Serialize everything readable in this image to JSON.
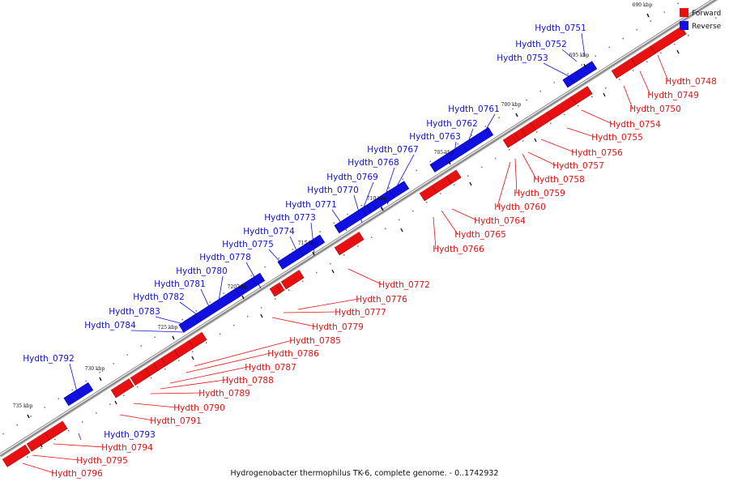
{
  "caption": "Hydrogenobacter thermophilus TK-6, complete genome. - 0..1742932",
  "legend": [
    {
      "label": "Forward",
      "color": "#e81010"
    },
    {
      "label": "Reverse",
      "color": "#1010e0"
    }
  ],
  "colors": {
    "forward": "#e81010",
    "reverse": "#1010e0",
    "axis": "#8c8c8c"
  },
  "kbp_ticks": [
    {
      "label": "690 kbp",
      "pos": 690
    },
    {
      "label": "695 kbp",
      "pos": 695
    },
    {
      "label": "700 kbp",
      "pos": 700
    },
    {
      "label": "705 kbp",
      "pos": 705
    },
    {
      "label": "710 kbp",
      "pos": 710
    },
    {
      "label": "715 kbp",
      "pos": 715
    },
    {
      "label": "720 kbp",
      "pos": 720
    },
    {
      "label": "725 kbp",
      "pos": 725
    },
    {
      "label": "730 kbp",
      "pos": 730
    },
    {
      "label": "735 kbp",
      "pos": 735
    }
  ],
  "reverse_genes": [
    "Hydth_0751",
    "Hydth_0752",
    "Hydth_0753",
    "Hydth_0761",
    "Hydth_0762",
    "Hydth_0763",
    "Hydth_0767",
    "Hydth_0768",
    "Hydth_0769",
    "Hydth_0770",
    "Hydth_0771",
    "Hydth_0773",
    "Hydth_0774",
    "Hydth_0775",
    "Hydth_0778",
    "Hydth_0780",
    "Hydth_0781",
    "Hydth_0782",
    "Hydth_0783",
    "Hydth_0784",
    "Hydth_0792",
    "Hydth_0793"
  ],
  "forward_genes": [
    "Hydth_0748",
    "Hydth_0749",
    "Hydth_0750",
    "Hydth_0754",
    "Hydth_0755",
    "Hydth_0756",
    "Hydth_0757",
    "Hydth_0758",
    "Hydth_0759",
    "Hydth_0760",
    "Hydth_0764",
    "Hydth_0765",
    "Hydth_0766",
    "Hydth_0772",
    "Hydth_0776",
    "Hydth_0777",
    "Hydth_0779",
    "Hydth_0785",
    "Hydth_0786",
    "Hydth_0787",
    "Hydth_0788",
    "Hydth_0789",
    "Hydth_0790",
    "Hydth_0791",
    "Hydth_0794",
    "Hydth_0795",
    "Hydth_0796"
  ]
}
